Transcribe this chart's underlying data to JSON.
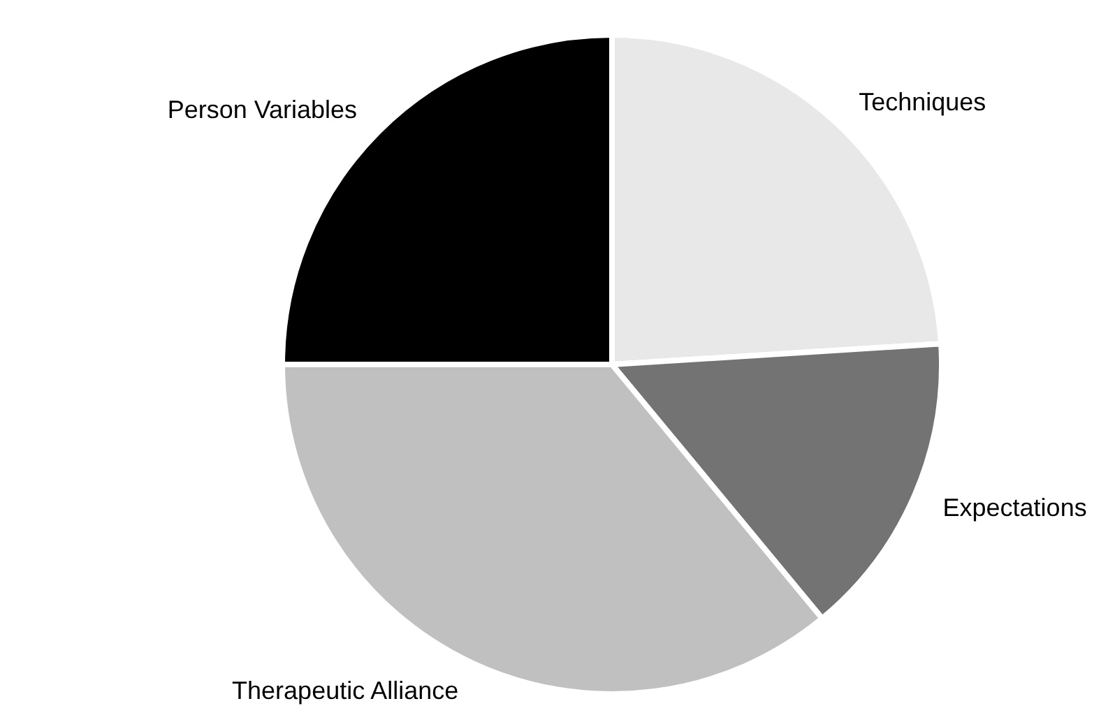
{
  "chart_data": {
    "type": "pie",
    "categories": [
      "Techniques",
      "Expectations",
      "Therapeutic Alliance",
      "Person Variables"
    ],
    "values": [
      24,
      15,
      36,
      25
    ],
    "colors": [
      "#e8e8e8",
      "#737373",
      "#c0c0c0",
      "#000000"
    ],
    "legend": false
  }
}
